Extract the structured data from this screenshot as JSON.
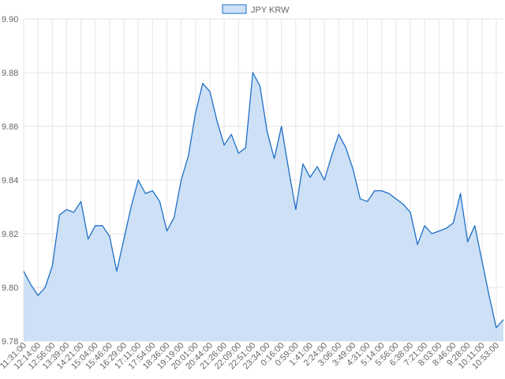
{
  "chart_data": {
    "type": "area",
    "series": [
      {
        "name": "JPY KRW",
        "points": [
          [
            "11:31:00",
            9.806
          ],
          [
            "11:52:00",
            9.801
          ],
          [
            "12:14:00",
            9.797
          ],
          [
            "12:35:00",
            9.8
          ],
          [
            "12:56:00",
            9.808
          ],
          [
            "13:18:00",
            9.827
          ],
          [
            "13:39:00",
            9.829
          ],
          [
            "14:00:00",
            9.828
          ],
          [
            "14:21:00",
            9.832
          ],
          [
            "14:42:00",
            9.818
          ],
          [
            "15:04:00",
            9.823
          ],
          [
            "15:25:00",
            9.823
          ],
          [
            "15:46:00",
            9.819
          ],
          [
            "16:08:00",
            9.806
          ],
          [
            "16:29:00",
            9.818
          ],
          [
            "16:50:00",
            9.83
          ],
          [
            "17:11:00",
            9.84
          ],
          [
            "17:32:00",
            9.835
          ],
          [
            "17:54:00",
            9.836
          ],
          [
            "18:15:00",
            9.832
          ],
          [
            "18:36:00",
            9.821
          ],
          [
            "18:58:00",
            9.826
          ],
          [
            "19:19:00",
            9.84
          ],
          [
            "19:40:00",
            9.849
          ],
          [
            "20:01:00",
            9.865
          ],
          [
            "20:22:00",
            9.876
          ],
          [
            "20:44:00",
            9.873
          ],
          [
            "21:05:00",
            9.862
          ],
          [
            "21:26:00",
            9.853
          ],
          [
            "21:48:00",
            9.857
          ],
          [
            "22:09:00",
            9.85
          ],
          [
            "22:30:00",
            9.852
          ],
          [
            "22:51:00",
            9.88
          ],
          [
            "23:12:00",
            9.875
          ],
          [
            "23:34:00",
            9.858
          ],
          [
            "23:55:00",
            9.848
          ],
          [
            "0:16:00",
            9.86
          ],
          [
            "0:37:00",
            9.844
          ],
          [
            "0:59:00",
            9.829
          ],
          [
            "1:20:00",
            9.846
          ],
          [
            "1:41:00",
            9.841
          ],
          [
            "2:02:00",
            9.845
          ],
          [
            "2:24:00",
            9.84
          ],
          [
            "2:45:00",
            9.849
          ],
          [
            "3:06:00",
            9.857
          ],
          [
            "3:27:00",
            9.852
          ],
          [
            "3:49:00",
            9.844
          ],
          [
            "4:10:00",
            9.833
          ],
          [
            "4:31:00",
            9.832
          ],
          [
            "4:52:00",
            9.836
          ],
          [
            "5:14:00",
            9.836
          ],
          [
            "5:35:00",
            9.835
          ],
          [
            "5:56:00",
            9.833
          ],
          [
            "6:17:00",
            9.831
          ],
          [
            "6:38:00",
            9.828
          ],
          [
            "7:00:00",
            9.816
          ],
          [
            "7:21:00",
            9.823
          ],
          [
            "7:42:00",
            9.82
          ],
          [
            "8:03:00",
            9.821
          ],
          [
            "8:25:00",
            9.822
          ],
          [
            "8:46:00",
            9.824
          ],
          [
            "9:07:00",
            9.835
          ],
          [
            "9:28:00",
            9.817
          ],
          [
            "9:49:00",
            9.823
          ],
          [
            "10:11:00",
            9.81
          ],
          [
            "10:32:00",
            9.797
          ],
          [
            "10:53:00",
            9.785
          ],
          [
            "11:14:00",
            9.788
          ]
        ]
      }
    ],
    "xlabels": [
      "11:31:00",
      "12:14:00",
      "12:56:00",
      "13:39:00",
      "14:21:00",
      "15:04:00",
      "15:46:00",
      "16:29:00",
      "17:11:00",
      "17:54:00",
      "18:36:00",
      "19:19:00",
      "20:01:00",
      "20:44:00",
      "21:26:00",
      "22:09:00",
      "22:51:00",
      "23:34:00",
      "0:16:00",
      "0:59:00",
      "1:41:00",
      "2:24:00",
      "3:06:00",
      "3:49:00",
      "4:31:00",
      "5:14:00",
      "5:56:00",
      "6:38:00",
      "7:21:00",
      "8:03:00",
      "8:46:00",
      "9:28:00",
      "10:11:00",
      "10:53:00"
    ],
    "yticks": [
      "9.78",
      "9.80",
      "9.82",
      "9.84",
      "9.86",
      "9.88",
      "9.90"
    ],
    "ylim": [
      9.78,
      9.9
    ],
    "grid": true,
    "legend_position": "top-center",
    "colors": {
      "line": "#1f6fc5",
      "fill": "#cde0f5",
      "grid": "#e6e6e6",
      "text": "#666666"
    }
  }
}
